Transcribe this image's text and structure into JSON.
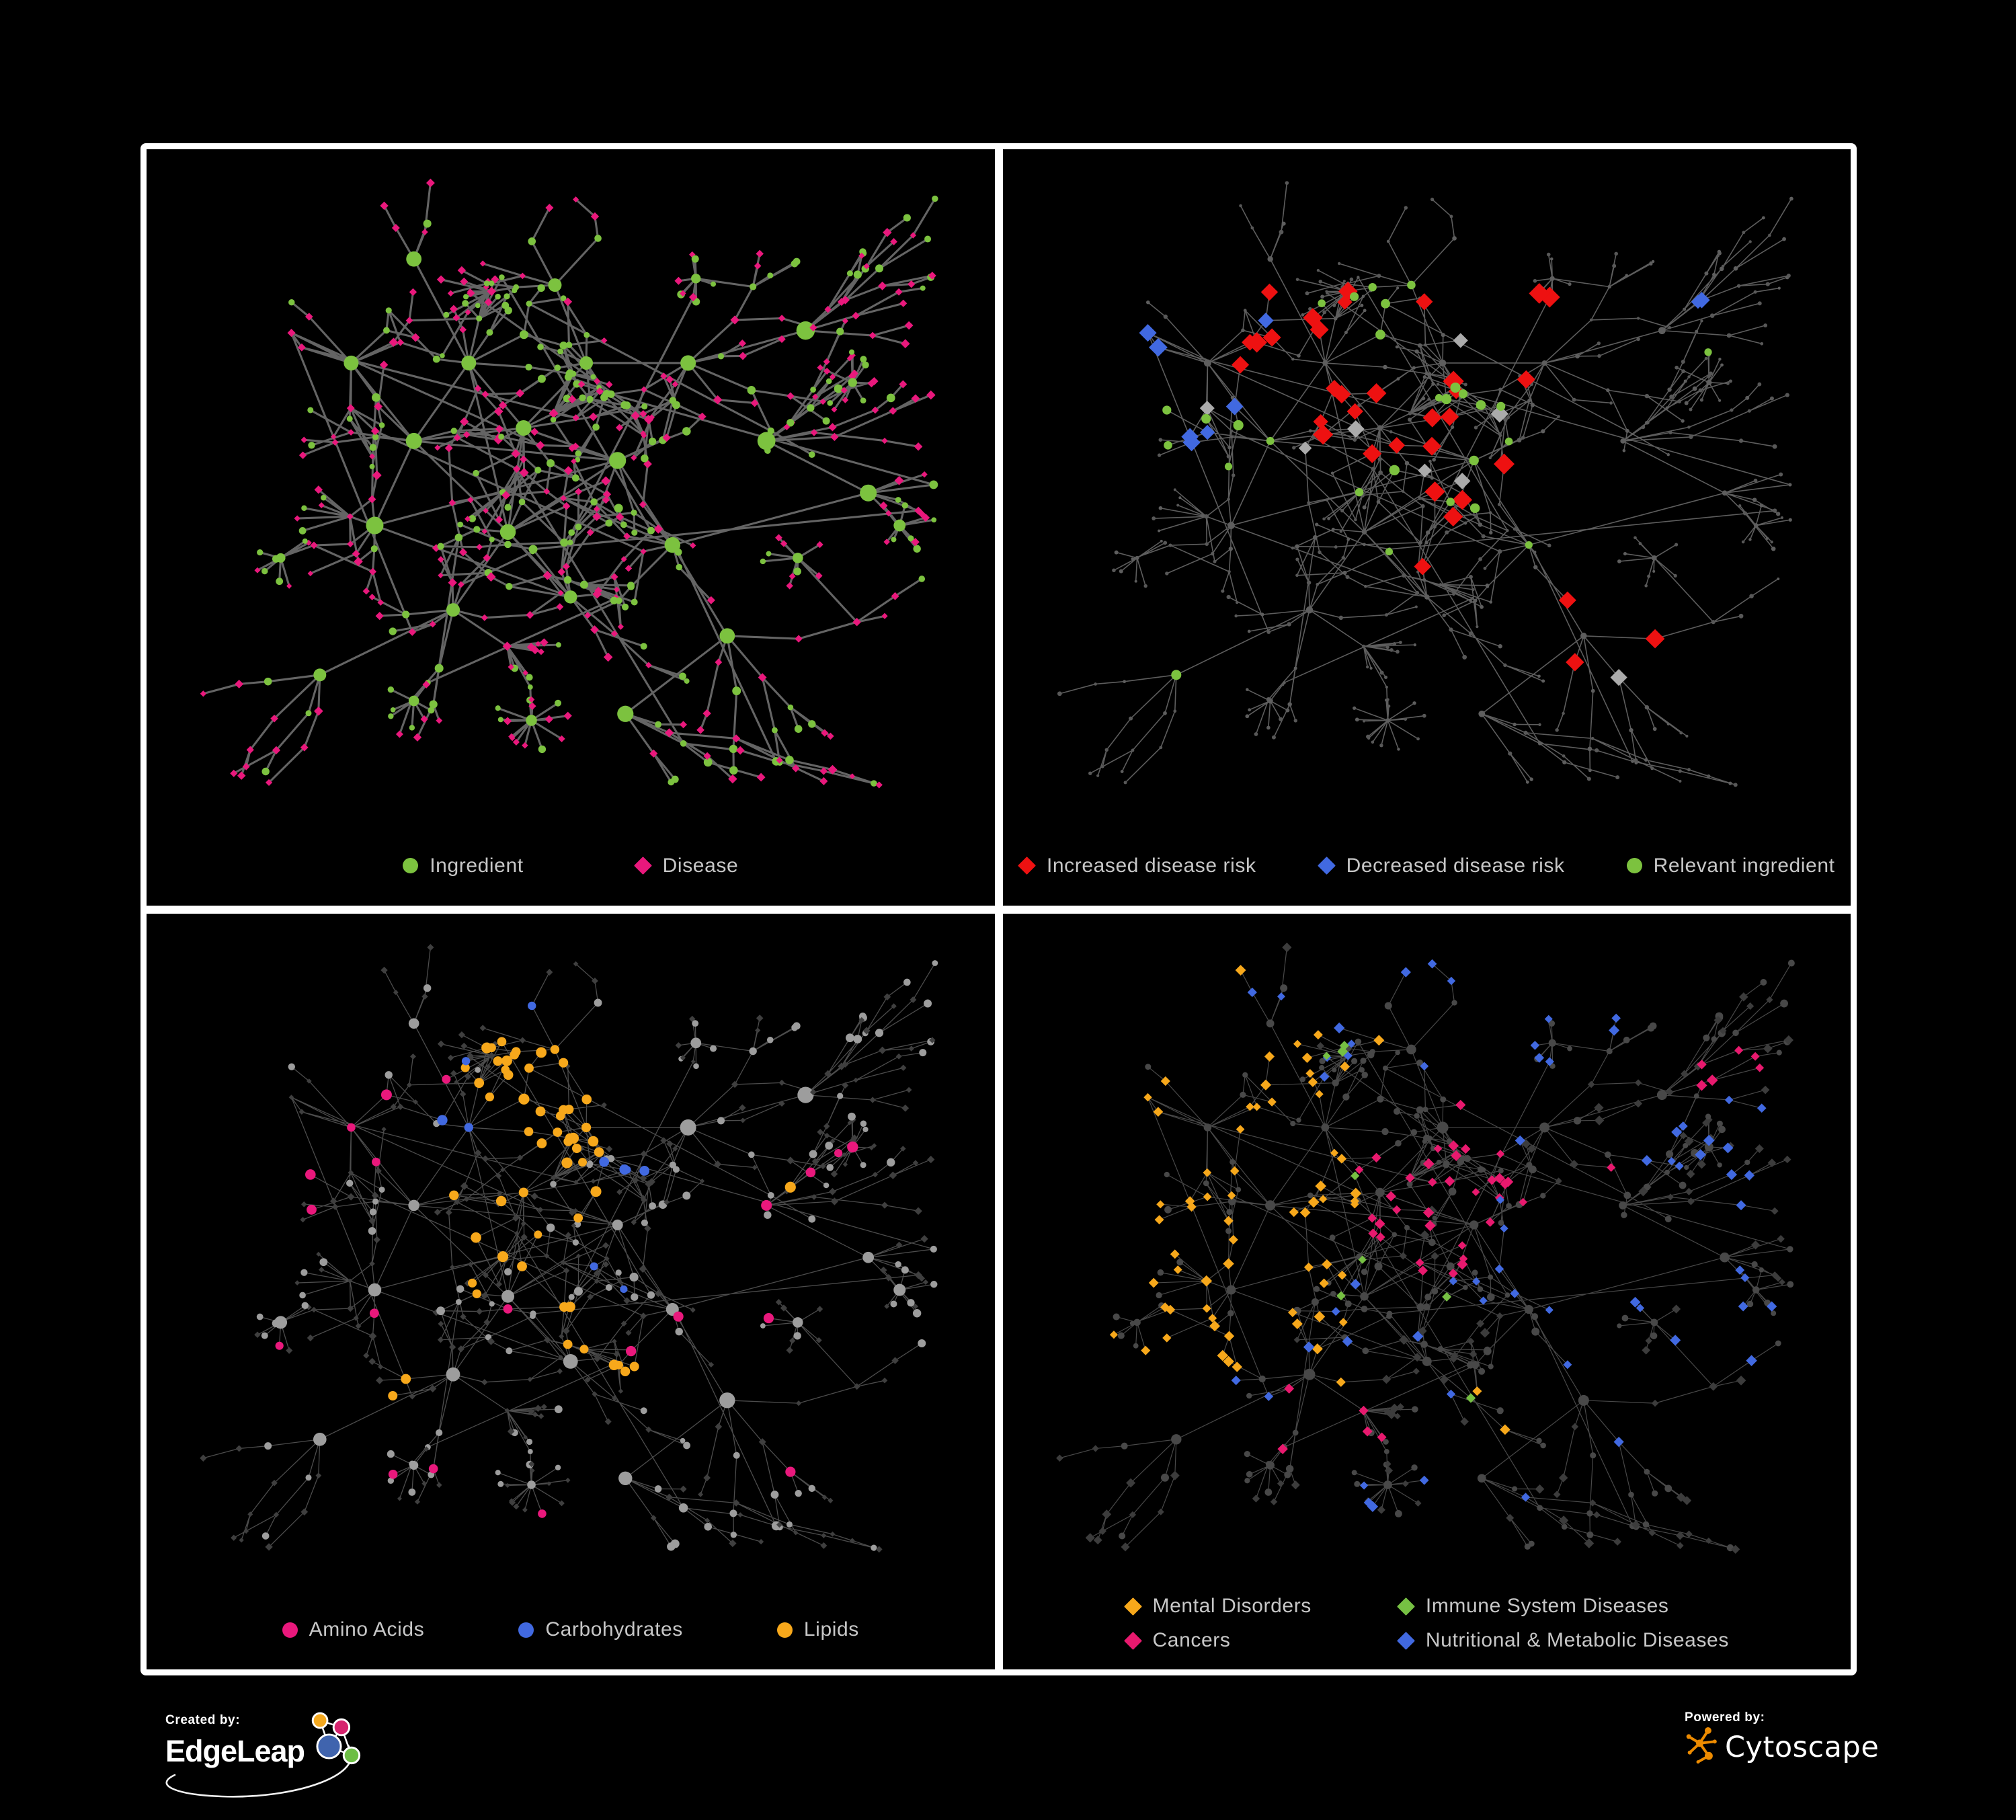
{
  "figure": {
    "background": "#000000",
    "panel_border": "#ffffff"
  },
  "panels": [
    {
      "name": "ingredient-disease-network",
      "legend": [
        {
          "label": "Ingredient",
          "shape": "circle",
          "color": "#7cc23f"
        },
        {
          "label": "Disease",
          "shape": "diamond",
          "color": "#e9187c"
        }
      ]
    },
    {
      "name": "disease-risk-network",
      "legend": [
        {
          "label": "Increased disease risk",
          "shape": "diamond",
          "color": "#ee1111"
        },
        {
          "label": "Decreased disease risk",
          "shape": "diamond",
          "color": "#4169e1"
        },
        {
          "label": "Relevant ingredient",
          "shape": "circle",
          "color": "#7cc23f"
        }
      ]
    },
    {
      "name": "nutrient-class-network",
      "legend": [
        {
          "label": "Amino Acids",
          "shape": "circle",
          "color": "#e9187c"
        },
        {
          "label": "Carbohydrates",
          "shape": "circle",
          "color": "#4169e1"
        },
        {
          "label": "Lipids",
          "shape": "circle",
          "color": "#f7a81b"
        }
      ]
    },
    {
      "name": "disease-class-network",
      "legend": [
        {
          "label": "Mental Disorders",
          "shape": "diamond",
          "color": "#f7a81b"
        },
        {
          "label": "Immune System Diseases",
          "shape": "diamond",
          "color": "#76c043"
        },
        {
          "label": "Cancers",
          "shape": "diamond",
          "color": "#e8196e"
        },
        {
          "label": "Nutritional & Metabolic Diseases",
          "shape": "diamond",
          "color": "#4169e1"
        }
      ]
    }
  ],
  "footer": {
    "created_by_label": "Created by:",
    "left_brand": "EdgeLeap",
    "powered_by_label": "Powered by:",
    "right_brand": "Cytoscape",
    "edgeleap_colors": {
      "orange": "#f3a81f",
      "pink": "#d6246e",
      "blue": "#4064ae",
      "green": "#6dbe45"
    },
    "cytoscape_orange": "#ed8b00"
  },
  "network": {
    "seed": 11,
    "step": 0.047,
    "disease_share": 0.63,
    "cross_edges": 12,
    "core_links": 80,
    "long_links": 14,
    "rim_start": 13,
    "roots": [
      [
        0.37,
        0.3
      ],
      [
        0.3,
        0.42
      ],
      [
        0.44,
        0.4
      ],
      [
        0.52,
        0.3
      ],
      [
        0.25,
        0.55
      ],
      [
        0.42,
        0.56
      ],
      [
        0.56,
        0.45
      ],
      [
        0.35,
        0.68
      ],
      [
        0.5,
        0.66
      ],
      [
        0.63,
        0.58
      ],
      [
        0.22,
        0.3
      ],
      [
        0.65,
        0.3
      ],
      [
        0.48,
        0.18
      ],
      [
        0.7,
        0.72
      ],
      [
        0.57,
        0.84
      ],
      [
        0.18,
        0.78
      ],
      [
        0.8,
        0.25
      ],
      [
        0.88,
        0.5
      ],
      [
        0.75,
        0.42
      ],
      [
        0.3,
        0.14
      ]
    ],
    "fans": [
      [
        0.45,
        0.85,
        15
      ],
      [
        0.86,
        0.33,
        10
      ],
      [
        0.79,
        0.6,
        9
      ],
      [
        0.3,
        0.82,
        8
      ],
      [
        0.66,
        0.17,
        8
      ],
      [
        0.13,
        0.6,
        7
      ],
      [
        0.92,
        0.55,
        8
      ]
    ],
    "ingredient_clusters": [
      [
        0.46,
        0.26,
        0.08
      ],
      [
        0.62,
        0.66,
        0.05
      ],
      [
        0.3,
        0.4,
        0.045
      ]
    ],
    "panel_styles": [
      {
        "edge": {
          "color": "#6d6d6d",
          "width": 3.1,
          "opacity": 0.92
        },
        "ingredient": {
          "shape": "circle",
          "color": "#7cc23f",
          "sizes": {
            "hub": 11,
            "fanhub": 7.5,
            "mid": 5.2,
            "leaf": 4.6
          }
        },
        "disease": {
          "shape": "diamond",
          "color": "#e9187c",
          "sizes": {
            "hub": 8,
            "fanhub": 7,
            "mid": 5.6,
            "leaf": 5.0
          }
        },
        "highlights": []
      },
      {
        "edge": {
          "color": "#676767",
          "width": 1.6,
          "opacity": 0.9
        },
        "ingredient": {
          "shape": "circle",
          "color": "#5e5e5e",
          "sizes": {
            "hub": 4.6,
            "fanhub": 3.6,
            "mid": 2.7,
            "leaf": 2.4
          }
        },
        "disease": {
          "shape": "circle",
          "color": "#585858",
          "sizes": {
            "hub": 4.6,
            "fanhub": 3.6,
            "mid": 2.7,
            "leaf": 2.4
          }
        },
        "highlights": [
          {
            "name": "increased-disease-risk",
            "shape": "diamond",
            "color": "#ee1111",
            "size": 13,
            "target": "d",
            "groups": [
              [
                0.45,
                0.32,
                0.14,
                15
              ],
              [
                0.28,
                0.26,
                0.08,
                5
              ],
              [
                0.6,
                0.4,
                0.1,
                5
              ],
              [
                0.52,
                0.55,
                0.08,
                4
              ],
              [
                0.72,
                0.74,
                0.07,
                3
              ],
              [
                0.57,
                0.2,
                0.06,
                2
              ]
            ]
          },
          {
            "name": "decreased-disease-risk",
            "shape": "diamond",
            "color": "#4169e1",
            "size": 12,
            "target": "d",
            "groups": [
              [
                0.26,
                0.31,
                0.07,
                7
              ],
              [
                0.85,
                0.17,
                0.05,
                2
              ]
            ]
          },
          {
            "name": "neutral-disease",
            "shape": "diamond",
            "color": "#ababab",
            "size": 11,
            "target": "d",
            "groups": [
              [
                0.4,
                0.36,
                0.2,
                6
              ],
              [
                0.74,
                0.76,
                0.05,
                1
              ],
              [
                0.2,
                0.33,
                0.06,
                1
              ]
            ]
          },
          {
            "name": "relevant-ingredient",
            "shape": "circle",
            "color": "#7cc23f",
            "size": 6.5,
            "target": "i",
            "groups": [
              [
                0.45,
                0.33,
                0.18,
                16
              ],
              [
                0.25,
                0.45,
                0.12,
                4
              ],
              [
                0.6,
                0.6,
                0.15,
                4
              ],
              [
                0.2,
                0.74,
                0.05,
                1
              ],
              [
                0.84,
                0.3,
                0.06,
                1
              ],
              [
                0.13,
                0.4,
                0.06,
                2
              ]
            ]
          }
        ]
      },
      {
        "edge": {
          "color": "#8a8a8a",
          "width": 1.3,
          "opacity": 0.55
        },
        "ingredient": {
          "shape": "circle",
          "color": "#9d9d9d",
          "sizes": {
            "hub": 9.5,
            "fanhub": 7.5,
            "mid": 5.4,
            "leaf": 4.7
          }
        },
        "disease": {
          "shape": "diamond",
          "color": "#3f3f3f",
          "sizes": {
            "hub": 5.5,
            "fanhub": 5,
            "mid": 4.6,
            "leaf": 4.2
          }
        },
        "highlights": [
          {
            "name": "lipids",
            "shape": "circle",
            "color": "#f7a81b",
            "size": 7,
            "target": "i",
            "groups": [
              [
                0.46,
                0.26,
                0.11,
                34
              ],
              [
                0.4,
                0.45,
                0.1,
                6
              ],
              [
                0.55,
                0.62,
                0.06,
                6
              ],
              [
                0.52,
                0.5,
                0.3,
                8
              ],
              [
                0.3,
                0.72,
                0.05,
                2
              ]
            ]
          },
          {
            "name": "amino-acids",
            "shape": "circle",
            "color": "#e9187c",
            "size": 7,
            "target": "i",
            "groups": [
              [
                0.45,
                0.6,
                0.42,
                14
              ],
              [
                0.15,
                0.35,
                0.12,
                3
              ],
              [
                0.85,
                0.3,
                0.12,
                3
              ]
            ]
          },
          {
            "name": "carbohydrates",
            "shape": "circle",
            "color": "#4169e1",
            "size": 6.5,
            "target": "i",
            "groups": [
              [
                0.45,
                0.28,
                0.09,
                8
              ],
              [
                0.07,
                0.28,
                0.05,
                1
              ],
              [
                0.6,
                0.55,
                0.08,
                2
              ]
            ]
          }
        ]
      },
      {
        "edge": {
          "color": "#8f8f8f",
          "width": 1.2,
          "opacity": 0.5
        },
        "ingredient": {
          "shape": "circle",
          "color": "#484848",
          "sizes": {
            "hub": 7,
            "fanhub": 6,
            "mid": 4.8,
            "leaf": 4.3
          }
        },
        "disease": {
          "shape": "diamond",
          "color": "#3c3c3c",
          "sizes": {
            "hub": 7,
            "fanhub": 6.5,
            "mid": 6,
            "leaf": 5.6
          }
        },
        "highlights": [
          {
            "name": "mental-disorders",
            "shape": "diamond",
            "color": "#f7a81b",
            "size": 7,
            "target": "d",
            "groups": [
              [
                0.17,
                0.44,
                0.13,
                58
              ],
              [
                0.28,
                0.24,
                0.1,
                10
              ],
              [
                0.1,
                0.7,
                0.05,
                3
              ],
              [
                0.4,
                0.65,
                0.06,
                3
              ],
              [
                0.65,
                0.72,
                0.05,
                2
              ]
            ]
          },
          {
            "name": "cancers",
            "shape": "diamond",
            "color": "#e8196e",
            "size": 7,
            "target": "d",
            "groups": [
              [
                0.5,
                0.4,
                0.13,
                32
              ],
              [
                0.33,
                0.78,
                0.06,
                5
              ],
              [
                0.88,
                0.22,
                0.05,
                6
              ],
              [
                0.62,
                0.3,
                0.07,
                4
              ]
            ]
          },
          {
            "name": "nutritional-metabolic-diseases",
            "shape": "diamond",
            "color": "#4169e1",
            "size": 7,
            "target": "d",
            "groups": [
              [
                0.72,
                0.46,
                0.11,
                18
              ],
              [
                0.58,
                0.1,
                0.17,
                10
              ],
              [
                0.88,
                0.33,
                0.09,
                8
              ],
              [
                0.3,
                0.55,
                0.12,
                7
              ],
              [
                0.22,
                0.1,
                0.13,
                7
              ],
              [
                0.48,
                0.9,
                0.09,
                4
              ],
              [
                0.9,
                0.6,
                0.07,
                4
              ],
              [
                0.65,
                0.75,
                0.08,
                4
              ]
            ]
          },
          {
            "name": "immune-system-diseases",
            "shape": "diamond",
            "color": "#76c043",
            "size": 7,
            "target": "d",
            "groups": [
              [
                0.44,
                0.3,
                0.14,
                4
              ],
              [
                0.32,
                0.77,
                0.04,
                2
              ],
              [
                0.52,
                0.55,
                0.18,
                2
              ],
              [
                0.25,
                0.5,
                0.1,
                2
              ]
            ]
          }
        ]
      }
    ]
  }
}
